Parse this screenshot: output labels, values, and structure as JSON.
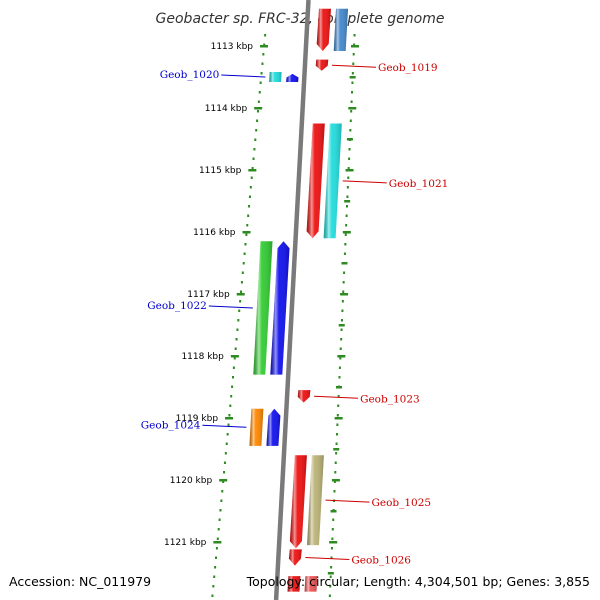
{
  "title": "Geobacter sp. FRC-32, complete genome",
  "accession": "Accession: NC_011979",
  "topology": "Topology: circular; Length: 4,304,501 bp; Genes: 3,855",
  "colors": {
    "tick": "#2e8b22",
    "backbone": "#777777",
    "label_left": "#0000cc",
    "label_right": "#cc0000"
  },
  "kbp_ticks": [
    {
      "kbp": 1113,
      "label": "1113 kbp"
    },
    {
      "kbp": 1114,
      "label": "1114 kbp"
    },
    {
      "kbp": 1115,
      "label": "1115 kbp"
    },
    {
      "kbp": 1116,
      "label": "1116 kbp"
    },
    {
      "kbp": 1117,
      "label": "1117 kbp"
    },
    {
      "kbp": 1118,
      "label": "1118 kbp"
    },
    {
      "kbp": 1119,
      "label": "1119 kbp"
    },
    {
      "kbp": 1120,
      "label": "1120 kbp"
    },
    {
      "kbp": 1121,
      "label": "1121 kbp"
    }
  ],
  "genes": [
    {
      "id": "g1017",
      "label": "",
      "start": 1112.4,
      "end": 1113.08,
      "track": "f1",
      "color": "#ee1111",
      "dir": "down"
    },
    {
      "id": "g1018",
      "label": "",
      "start": 1112.4,
      "end": 1113.08,
      "track": "f2",
      "color": "#4488cc",
      "dir": "none"
    },
    {
      "id": "g1019",
      "label": "Geob_1019",
      "start": 1113.22,
      "end": 1113.4,
      "track": "f1",
      "color": "#ee1111",
      "dir": "down",
      "labelSide": "right"
    },
    {
      "id": "g1020a",
      "label": "Geob_1020",
      "start": 1113.42,
      "end": 1113.58,
      "track": "r2",
      "color": "#22dddd",
      "dir": "none",
      "labelSide": "left"
    },
    {
      "id": "g1020b",
      "label": "",
      "start": 1113.45,
      "end": 1113.58,
      "track": "r1",
      "color": "#1111ee",
      "dir": "up"
    },
    {
      "id": "g1021a",
      "label": "",
      "start": 1114.25,
      "end": 1116.1,
      "track": "f1",
      "color": "#ee1111",
      "dir": "down"
    },
    {
      "id": "g1021b",
      "label": "Geob_1021",
      "start": 1114.25,
      "end": 1116.1,
      "track": "f2",
      "color": "#22dddd",
      "dir": "none",
      "labelSide": "right"
    },
    {
      "id": "g1022a",
      "label": "Geob_1022",
      "start": 1116.15,
      "end": 1118.3,
      "track": "r2",
      "color": "#33cc33",
      "dir": "none",
      "labelSide": "left"
    },
    {
      "id": "g1022b",
      "label": "",
      "start": 1116.15,
      "end": 1118.3,
      "track": "r1",
      "color": "#1111ee",
      "dir": "up"
    },
    {
      "id": "g1023",
      "label": "Geob_1023",
      "start": 1118.55,
      "end": 1118.75,
      "track": "f1",
      "color": "#ee1111",
      "dir": "down",
      "labelSide": "right"
    },
    {
      "id": "g1024a",
      "label": "Geob_1024",
      "start": 1118.85,
      "end": 1119.45,
      "track": "r2",
      "color": "#ff8800",
      "dir": "none",
      "labelSide": "left"
    },
    {
      "id": "g1024b",
      "label": "",
      "start": 1118.85,
      "end": 1119.45,
      "track": "r1",
      "color": "#1111ee",
      "dir": "up"
    },
    {
      "id": "g1025a",
      "label": "",
      "start": 1119.6,
      "end": 1121.1,
      "track": "f1",
      "color": "#ee1111",
      "dir": "down"
    },
    {
      "id": "g1025b",
      "label": "Geob_1025",
      "start": 1119.6,
      "end": 1121.05,
      "track": "f2",
      "color": "#bbb377",
      "dir": "none",
      "labelSide": "right"
    },
    {
      "id": "g1026",
      "label": "Geob_1026",
      "start": 1121.12,
      "end": 1121.38,
      "track": "f1",
      "color": "#ee1111",
      "dir": "down",
      "labelSide": "right"
    },
    {
      "id": "g1027a",
      "label": "",
      "start": 1121.55,
      "end": 1121.8,
      "track": "f1",
      "color": "#ee1111",
      "dir": "none"
    },
    {
      "id": "g1027b",
      "label": "",
      "start": 1121.55,
      "end": 1121.8,
      "track": "f2",
      "color": "#ee5555",
      "dir": "none"
    }
  ]
}
